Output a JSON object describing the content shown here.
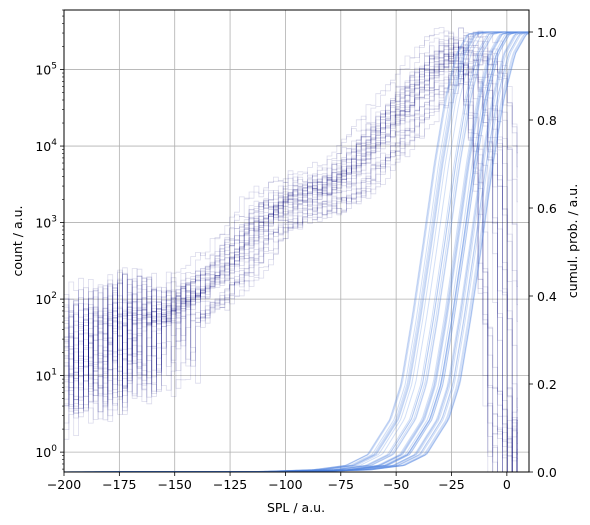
{
  "chart_data": {
    "type": "line",
    "title": "",
    "xlabel": "SPL / a.u.",
    "ylabel_left": "count / a.u.",
    "ylabel_right": "cumul. prob. / a.u.",
    "xlim": [
      -200,
      10
    ],
    "ylim_left": [
      0.55,
      600000
    ],
    "yscale_left": "log",
    "ylim_right": [
      0,
      1.05
    ],
    "grid": true,
    "x_ticks": [
      -200,
      -175,
      -150,
      -125,
      -100,
      -75,
      -50,
      -25,
      0
    ],
    "y_left_ticks": [
      {
        "value": 1,
        "label": "10",
        "exp": "0"
      },
      {
        "value": 10,
        "label": "10",
        "exp": "1"
      },
      {
        "value": 100,
        "label": "10",
        "exp": "2"
      },
      {
        "value": 1000,
        "label": "10",
        "exp": "3"
      },
      {
        "value": 10000,
        "label": "10",
        "exp": "4"
      },
      {
        "value": 100000,
        "label": "10",
        "exp": "5"
      }
    ],
    "y_right_ticks": [
      0.0,
      0.2,
      0.4,
      0.6,
      0.8,
      1.0
    ],
    "histogram_color": "#00007a",
    "cdf_color": "#4d7fe0",
    "n_series": 40,
    "histogram_envelope": {
      "x": [
        -200,
        -175,
        -150,
        -125,
        -110,
        -100,
        -75,
        -50,
        -35,
        -25,
        -20,
        -12,
        -5,
        0,
        3
      ],
      "count": [
        15,
        30,
        60,
        250,
        1000,
        1700,
        3000,
        20000,
        70000,
        160000,
        180000,
        120000,
        5000,
        5,
        0.6
      ]
    },
    "cdf_envelope": {
      "x": [
        -200,
        -100,
        -75,
        -60,
        -50,
        -40,
        -35,
        -30,
        -25,
        -20,
        -15,
        -10,
        -5,
        0,
        10
      ],
      "prob": [
        0.0,
        0.001,
        0.005,
        0.015,
        0.04,
        0.12,
        0.2,
        0.35,
        0.52,
        0.7,
        0.85,
        0.95,
        0.995,
        1.0,
        1.0
      ]
    }
  }
}
